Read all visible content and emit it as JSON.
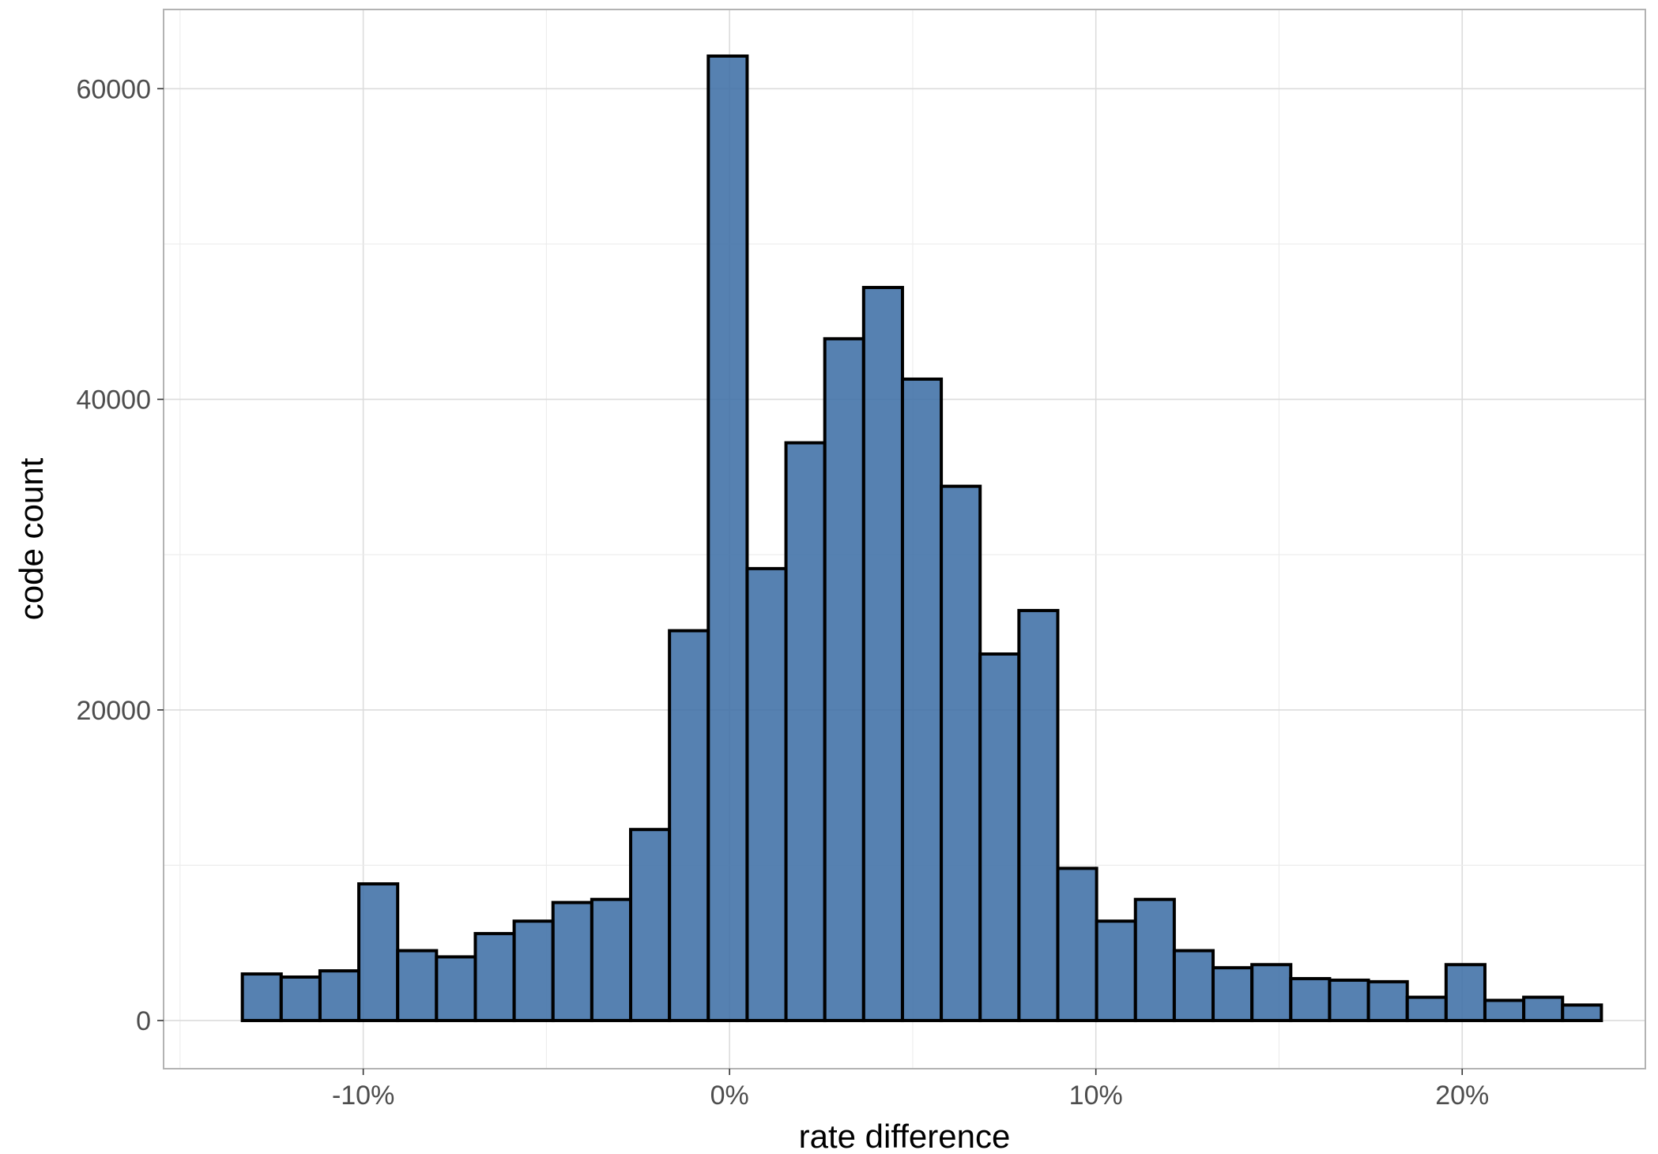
{
  "chart_data": {
    "type": "bar",
    "subtype": "histogram",
    "xlabel": "rate difference",
    "ylabel": "code count",
    "x_ticks": [
      -0.1,
      0.0,
      0.1,
      0.2
    ],
    "x_tick_labels": [
      "-10%",
      "0%",
      "10%",
      "20%"
    ],
    "y_ticks": [
      0,
      20000,
      40000,
      60000
    ],
    "y_tick_labels": [
      "0",
      "20000",
      "40000",
      "60000"
    ],
    "xlim": [
      -0.1545,
      0.25
    ],
    "ylim": [
      -3100,
      65100
    ],
    "grid": true,
    "fill_color": "#3f6fa6",
    "outline_color": "#000000",
    "bin_width": 0.0106,
    "bins": [
      {
        "x0": -0.133,
        "x1": -0.1224,
        "count": 3000
      },
      {
        "x0": -0.1224,
        "x1": -0.1118,
        "count": 2800
      },
      {
        "x0": -0.1118,
        "x1": -0.1012,
        "count": 3200
      },
      {
        "x0": -0.1012,
        "x1": -0.0906,
        "count": 8800
      },
      {
        "x0": -0.0906,
        "x1": -0.08,
        "count": 4500
      },
      {
        "x0": -0.08,
        "x1": -0.0694,
        "count": 4100
      },
      {
        "x0": -0.0694,
        "x1": -0.0588,
        "count": 5600
      },
      {
        "x0": -0.0588,
        "x1": -0.0482,
        "count": 6400
      },
      {
        "x0": -0.0482,
        "x1": -0.0376,
        "count": 7600
      },
      {
        "x0": -0.0376,
        "x1": -0.027,
        "count": 7800
      },
      {
        "x0": -0.027,
        "x1": -0.0164,
        "count": 12300
      },
      {
        "x0": -0.0164,
        "x1": -0.0058,
        "count": 25100
      },
      {
        "x0": -0.0058,
        "x1": 0.0048,
        "count": 62100
      },
      {
        "x0": 0.0048,
        "x1": 0.0154,
        "count": 29100
      },
      {
        "x0": 0.0154,
        "x1": 0.026,
        "count": 37200
      },
      {
        "x0": 0.026,
        "x1": 0.0366,
        "count": 43900
      },
      {
        "x0": 0.0366,
        "x1": 0.0472,
        "count": 47200
      },
      {
        "x0": 0.0472,
        "x1": 0.0578,
        "count": 41300
      },
      {
        "x0": 0.0578,
        "x1": 0.0684,
        "count": 34400
      },
      {
        "x0": 0.0684,
        "x1": 0.079,
        "count": 23600
      },
      {
        "x0": 0.079,
        "x1": 0.0896,
        "count": 26400
      },
      {
        "x0": 0.0896,
        "x1": 0.1002,
        "count": 9800
      },
      {
        "x0": 0.1002,
        "x1": 0.1108,
        "count": 6400
      },
      {
        "x0": 0.1108,
        "x1": 0.1214,
        "count": 7800
      },
      {
        "x0": 0.1214,
        "x1": 0.132,
        "count": 4500
      },
      {
        "x0": 0.132,
        "x1": 0.1426,
        "count": 3400
      },
      {
        "x0": 0.1426,
        "x1": 0.1532,
        "count": 3600
      },
      {
        "x0": 0.1532,
        "x1": 0.1638,
        "count": 2700
      },
      {
        "x0": 0.1638,
        "x1": 0.1744,
        "count": 2600
      },
      {
        "x0": 0.1744,
        "x1": 0.185,
        "count": 2500
      },
      {
        "x0": 0.185,
        "x1": 0.1956,
        "count": 1500
      },
      {
        "x0": 0.1956,
        "x1": 0.2062,
        "count": 3600
      },
      {
        "x0": 0.2062,
        "x1": 0.2168,
        "count": 1300
      },
      {
        "x0": 0.2168,
        "x1": 0.2274,
        "count": 1500
      },
      {
        "x0": 0.2274,
        "x1": 0.238,
        "count": 1000
      }
    ]
  }
}
